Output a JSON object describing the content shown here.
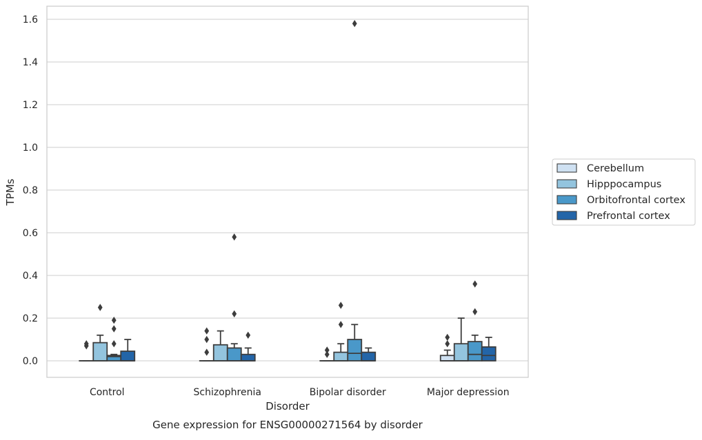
{
  "chart_data": {
    "type": "box",
    "title": "Gene expression for ENSG00000271564 by disorder",
    "xlabel": "Disorder",
    "ylabel": "TPMs",
    "ylim": [
      -0.08,
      1.66
    ],
    "yticks": [
      "0.0",
      "0.2",
      "0.4",
      "0.6",
      "0.8",
      "1.0",
      "1.2",
      "1.4",
      "1.6"
    ],
    "grid": true,
    "legend_position": "right",
    "categories": [
      "Control",
      "Schizophrenia",
      "Bipolar disorder",
      "Major depression"
    ],
    "series": [
      {
        "name": "Cerebellum",
        "color": "#cfe1f2",
        "boxes": [
          {
            "q1": 0,
            "median": 0,
            "q3": 0,
            "whislo": 0,
            "whishi": 0,
            "fliers": [
              0.07,
              0.08
            ]
          },
          {
            "q1": 0,
            "median": 0,
            "q3": 0,
            "whislo": 0,
            "whishi": 0,
            "fliers": [
              0.04,
              0.1,
              0.14
            ]
          },
          {
            "q1": 0,
            "median": 0,
            "q3": 0,
            "whislo": 0,
            "whishi": 0,
            "fliers": [
              0.03,
              0.05
            ]
          },
          {
            "q1": 0,
            "median": 0,
            "q3": 0.025,
            "whislo": 0,
            "whishi": 0.05,
            "fliers": [
              0.08,
              0.11
            ]
          }
        ]
      },
      {
        "name": "Hipppocampus",
        "color": "#93c4de",
        "boxes": [
          {
            "q1": 0,
            "median": 0,
            "q3": 0.085,
            "whislo": 0,
            "whishi": 0.12,
            "fliers": [
              0.25
            ]
          },
          {
            "q1": 0,
            "median": 0,
            "q3": 0.075,
            "whislo": 0,
            "whishi": 0.14,
            "fliers": []
          },
          {
            "q1": 0,
            "median": 0,
            "q3": 0.04,
            "whislo": 0,
            "whishi": 0.08,
            "fliers": [
              0.17,
              0.26
            ]
          },
          {
            "q1": 0,
            "median": 0,
            "q3": 0.08,
            "whislo": 0,
            "whishi": 0.2,
            "fliers": []
          }
        ]
      },
      {
        "name": "Orbitofrontal cortex",
        "color": "#4a98c9",
        "boxes": [
          {
            "q1": 0,
            "median": 0.02,
            "q3": 0.025,
            "whislo": 0,
            "whishi": 0.03,
            "fliers": [
              0.08,
              0.15,
              0.19
            ]
          },
          {
            "q1": 0,
            "median": 0,
            "q3": 0.06,
            "whislo": 0,
            "whishi": 0.08,
            "fliers": [
              0.22,
              0.58
            ]
          },
          {
            "q1": 0,
            "median": 0.035,
            "q3": 0.1,
            "whislo": 0,
            "whishi": 0.17,
            "fliers": [
              1.58
            ]
          },
          {
            "q1": 0,
            "median": 0.03,
            "q3": 0.09,
            "whislo": 0,
            "whishi": 0.12,
            "fliers": [
              0.23,
              0.36
            ]
          }
        ]
      },
      {
        "name": "Prefrontal cortex",
        "color": "#2365a8",
        "boxes": [
          {
            "q1": 0,
            "median": 0,
            "q3": 0.045,
            "whislo": 0,
            "whishi": 0.1,
            "fliers": []
          },
          {
            "q1": 0,
            "median": 0,
            "q3": 0.03,
            "whislo": 0,
            "whishi": 0.06,
            "fliers": [
              0.12
            ]
          },
          {
            "q1": 0,
            "median": 0,
            "q3": 0.04,
            "whislo": 0,
            "whishi": 0.06,
            "fliers": []
          },
          {
            "q1": 0,
            "median": 0.025,
            "q3": 0.065,
            "whislo": 0,
            "whishi": 0.11,
            "fliers": []
          }
        ]
      }
    ]
  }
}
